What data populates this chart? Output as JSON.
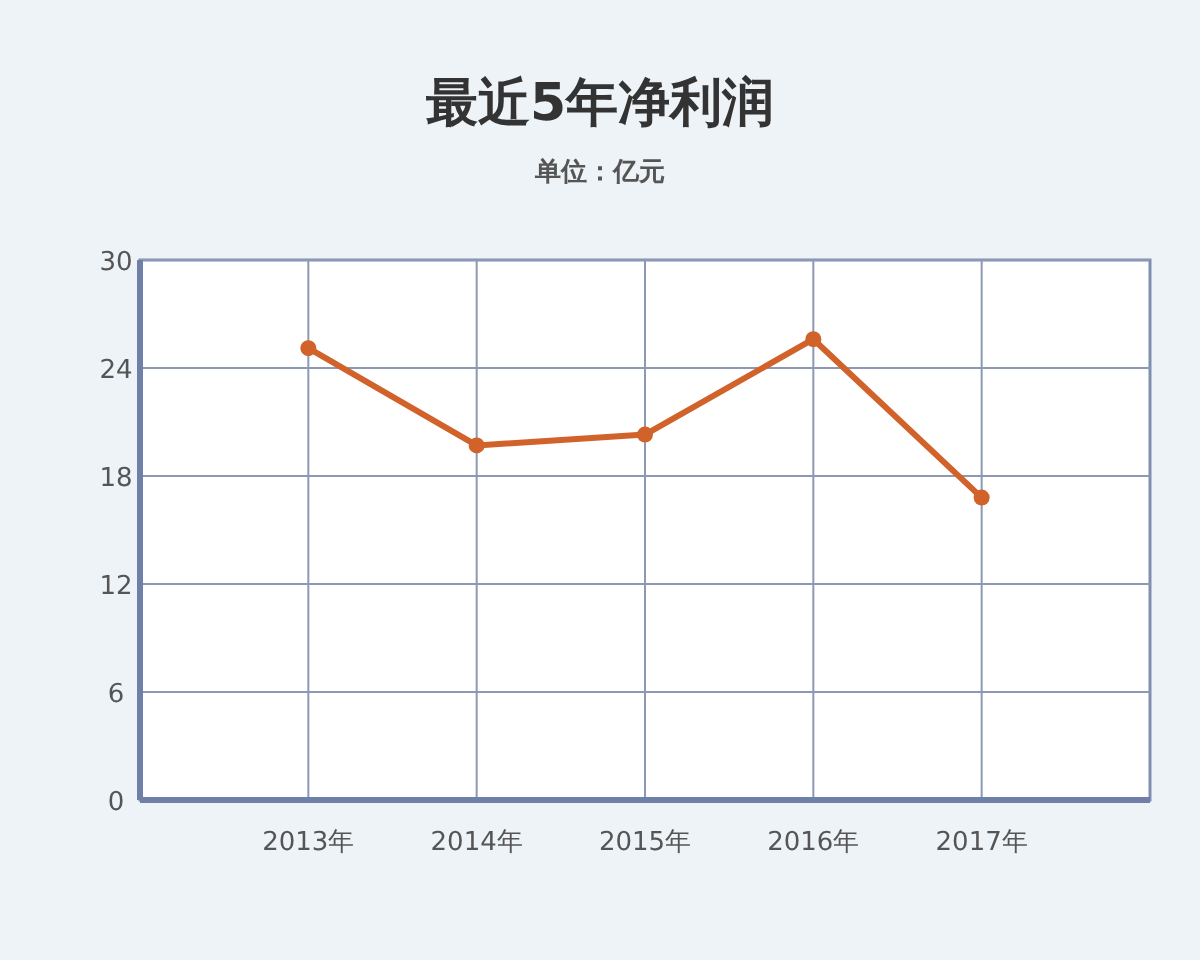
{
  "chart_data": {
    "type": "line",
    "title": "最近5年净利润",
    "subtitle": "单位：亿元",
    "categories": [
      "2013年",
      "2014年",
      "2015年",
      "2016年",
      "2017年"
    ],
    "series": [
      {
        "color": "#d0622a",
        "values": [
          25.1,
          19.7,
          20.3,
          25.6,
          16.8
        ]
      }
    ],
    "ylim": [
      0,
      30
    ],
    "yticks": [
      0,
      6,
      12,
      18,
      24,
      30
    ],
    "grid": true,
    "marker": "circle",
    "line_style": "solid"
  }
}
